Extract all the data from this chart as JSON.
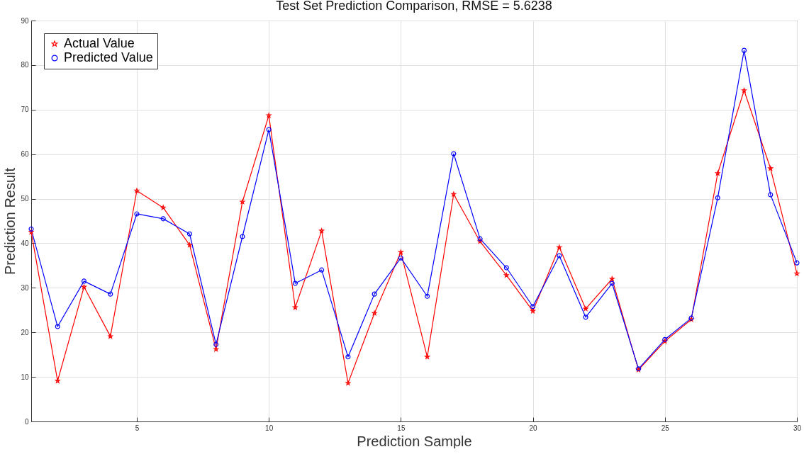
{
  "chart_data": {
    "type": "line",
    "title": "Test Set Prediction Comparison, RMSE = 5.6238",
    "xlabel": "Prediction Sample",
    "ylabel": "Prediction Result",
    "x": [
      1,
      2,
      3,
      4,
      5,
      6,
      7,
      8,
      9,
      10,
      11,
      12,
      13,
      14,
      15,
      16,
      17,
      18,
      19,
      20,
      21,
      22,
      23,
      24,
      25,
      26,
      27,
      28,
      29,
      30
    ],
    "series": [
      {
        "name": "Actual Value",
        "color": "#ff0000",
        "marker": "star",
        "values": [
          42.5,
          9.1,
          30.2,
          19.1,
          51.8,
          48.0,
          39.6,
          16.2,
          49.3,
          68.7,
          25.6,
          42.8,
          8.6,
          24.3,
          38.0,
          14.5,
          51.0,
          40.4,
          32.8,
          24.8,
          39.1,
          25.3,
          32.0,
          11.6,
          18.0,
          22.9,
          55.7,
          74.3,
          56.8,
          33.2
        ]
      },
      {
        "name": "Predicted Value",
        "color": "#0000ff",
        "marker": "circle",
        "values": [
          43.2,
          21.3,
          31.5,
          28.6,
          46.6,
          45.5,
          42.1,
          17.3,
          41.5,
          65.5,
          31.0,
          34.0,
          14.5,
          28.6,
          36.7,
          28.1,
          60.1,
          41.0,
          34.5,
          25.8,
          37.2,
          23.4,
          31.0,
          11.8,
          18.4,
          23.2,
          50.2,
          83.3,
          50.9,
          35.6
        ]
      }
    ],
    "xlim": [
      1,
      30
    ],
    "xticks": [
      5,
      10,
      15,
      20,
      25,
      30
    ],
    "ylim": [
      0,
      90
    ],
    "yticks": [
      0,
      10,
      20,
      30,
      40,
      50,
      60,
      70,
      80,
      90
    ],
    "grid": true,
    "legend": "top left"
  }
}
